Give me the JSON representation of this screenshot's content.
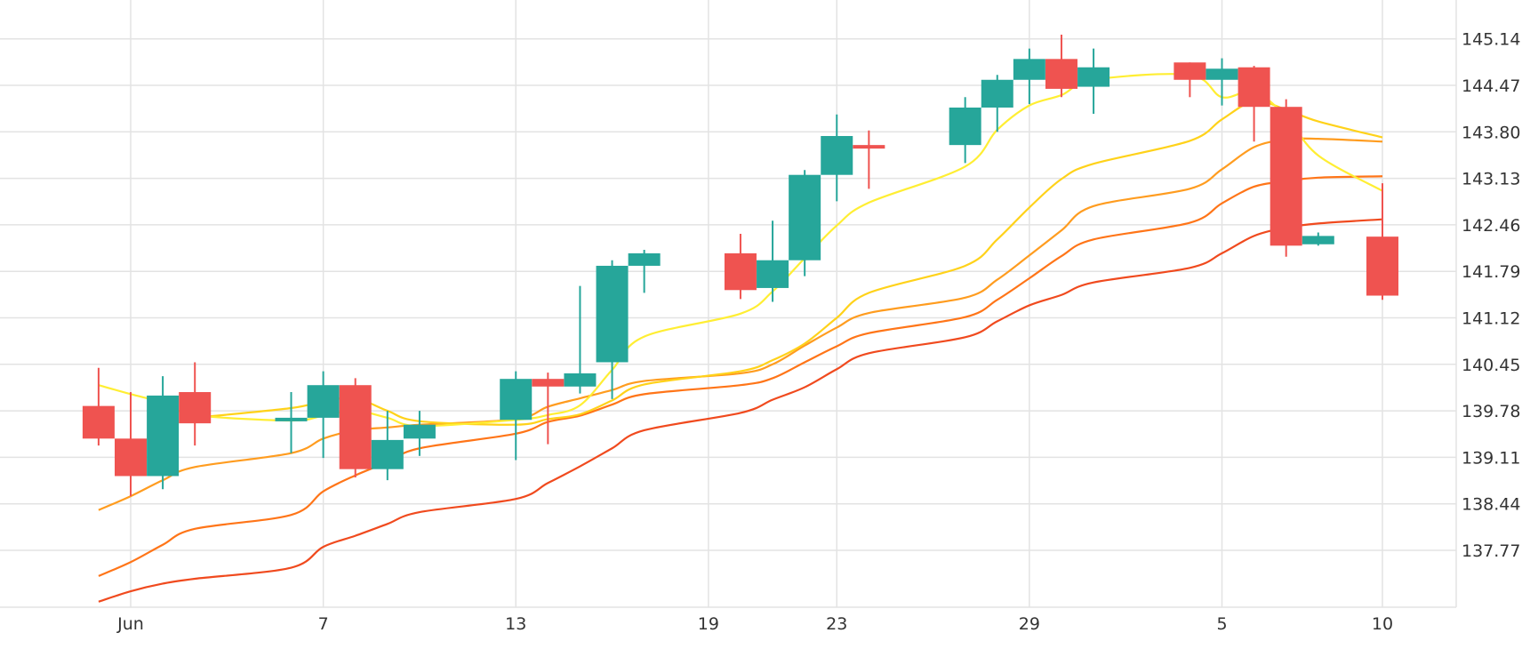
{
  "chart_data": {
    "type": "candlestick",
    "title": "",
    "xlabel": "",
    "ylabel": "",
    "grid": true,
    "x_ticks": [
      {
        "label": "Jun",
        "x": "Jun 1"
      },
      {
        "label": "7",
        "x": "Jun 7"
      },
      {
        "label": "13",
        "x": "Jun 13"
      },
      {
        "label": "19",
        "x": "Jun 19"
      },
      {
        "label": "23",
        "x": "Jun 23"
      },
      {
        "label": "29",
        "x": "Jun 29"
      },
      {
        "label": "5",
        "x": "Jul 5"
      },
      {
        "label": "10",
        "x": "Jul 10"
      }
    ],
    "y_ticks": [
      "137.77",
      "138.44",
      "139.11",
      "139.78",
      "140.45",
      "141.12",
      "141.79",
      "142.46",
      "143.13",
      "143.80",
      "144.47",
      "145.14"
    ],
    "ylim": [
      136.95,
      145.7
    ],
    "candles": [
      {
        "date": "May 31",
        "open": 139.85,
        "high": 140.4,
        "low": 139.28,
        "close": 139.38
      },
      {
        "date": "Jun 1",
        "open": 139.38,
        "high": 140.05,
        "low": 138.55,
        "close": 138.84
      },
      {
        "date": "Jun 2",
        "open": 138.84,
        "high": 140.28,
        "low": 138.65,
        "close": 140.0
      },
      {
        "date": "Jun 3",
        "open": 140.05,
        "high": 140.48,
        "low": 139.28,
        "close": 139.6
      },
      {
        "date": "Jun 6",
        "open": 139.63,
        "high": 140.05,
        "low": 139.17,
        "close": 139.68
      },
      {
        "date": "Jun 7",
        "open": 139.68,
        "high": 140.35,
        "low": 139.1,
        "close": 140.15
      },
      {
        "date": "Jun 8",
        "open": 140.15,
        "high": 140.25,
        "low": 138.82,
        "close": 138.94
      },
      {
        "date": "Jun 9",
        "open": 138.94,
        "high": 139.78,
        "low": 138.78,
        "close": 139.36
      },
      {
        "date": "Jun 10",
        "open": 139.38,
        "high": 139.78,
        "low": 139.13,
        "close": 139.58
      },
      {
        "date": "Jun 13",
        "open": 139.65,
        "high": 140.35,
        "low": 139.07,
        "close": 140.24
      },
      {
        "date": "Jun 14",
        "open": 140.24,
        "high": 140.33,
        "low": 139.3,
        "close": 140.13
      },
      {
        "date": "Jun 15",
        "open": 140.13,
        "high": 141.58,
        "low": 140.03,
        "close": 140.32
      },
      {
        "date": "Jun 16",
        "open": 140.48,
        "high": 141.95,
        "low": 139.95,
        "close": 141.87
      },
      {
        "date": "Jun 17",
        "open": 141.87,
        "high": 142.1,
        "low": 141.48,
        "close": 142.05
      },
      {
        "date": "Jun 20",
        "open": 142.05,
        "high": 142.33,
        "low": 141.39,
        "close": 141.52
      },
      {
        "date": "Jun 21",
        "open": 141.55,
        "high": 142.52,
        "low": 141.35,
        "close": 141.95
      },
      {
        "date": "Jun 22",
        "open": 141.95,
        "high": 143.25,
        "low": 141.72,
        "close": 143.18
      },
      {
        "date": "Jun 23",
        "open": 143.18,
        "high": 144.05,
        "low": 142.8,
        "close": 143.74
      },
      {
        "date": "Jun 24",
        "open": 143.61,
        "high": 143.82,
        "low": 142.98,
        "close": 143.56
      },
      {
        "date": "Jun 27",
        "open": 143.61,
        "high": 144.3,
        "low": 143.35,
        "close": 144.15
      },
      {
        "date": "Jun 28",
        "open": 144.15,
        "high": 144.62,
        "low": 143.8,
        "close": 144.55
      },
      {
        "date": "Jun 29",
        "open": 144.55,
        "high": 145.0,
        "low": 144.2,
        "close": 144.85
      },
      {
        "date": "Jun 30",
        "open": 144.85,
        "high": 145.2,
        "low": 144.3,
        "close": 144.42
      },
      {
        "date": "Jul 1",
        "open": 144.45,
        "high": 145.0,
        "low": 144.06,
        "close": 144.73
      },
      {
        "date": "Jul 4",
        "open": 144.8,
        "high": 144.8,
        "low": 144.3,
        "close": 144.55
      },
      {
        "date": "Jul 5",
        "open": 144.55,
        "high": 144.86,
        "low": 144.18,
        "close": 144.71
      },
      {
        "date": "Jul 6",
        "open": 144.73,
        "high": 144.75,
        "low": 143.66,
        "close": 144.16
      },
      {
        "date": "Jul 7",
        "open": 144.16,
        "high": 144.27,
        "low": 142.0,
        "close": 142.16
      },
      {
        "date": "Jul 8",
        "open": 142.18,
        "high": 142.35,
        "low": 142.16,
        "close": 142.3
      },
      {
        "date": "Jul 10",
        "open": 142.29,
        "high": 143.06,
        "low": 141.38,
        "close": 141.44
      }
    ],
    "series": [
      {
        "color": "#ffee33",
        "values": [
          140.15,
          140.02,
          139.9,
          139.72,
          139.64,
          139.71,
          139.78,
          139.68,
          139.56,
          139.65,
          139.72,
          139.86,
          140.37,
          140.85,
          141.18,
          141.5,
          141.98,
          142.45,
          142.78,
          143.3,
          143.83,
          144.18,
          144.33,
          144.55,
          144.62,
          144.3,
          144.38,
          144.02,
          143.46,
          142.95
        ]
      },
      {
        "color": "#ffd21a",
        "values": [
          null,
          null,
          null,
          139.68,
          139.82,
          139.92,
          139.96,
          139.78,
          139.63,
          139.58,
          139.66,
          139.73,
          139.93,
          140.16,
          140.35,
          140.51,
          140.75,
          141.12,
          141.48,
          141.87,
          142.25,
          142.71,
          143.12,
          143.34,
          143.67,
          143.98,
          144.24,
          144.12,
          143.95,
          143.72
        ]
      },
      {
        "color": "#ff9c1f",
        "values": [
          138.35,
          138.55,
          138.78,
          138.97,
          139.17,
          139.38,
          139.5,
          139.54,
          139.58,
          139.66,
          139.84,
          139.96,
          140.08,
          140.21,
          140.32,
          140.45,
          140.72,
          140.98,
          141.19,
          141.41,
          141.67,
          142.02,
          142.38,
          142.73,
          142.98,
          143.26,
          143.58,
          143.69,
          143.7,
          143.66
        ]
      },
      {
        "color": "#ff7518",
        "values": [
          137.4,
          137.6,
          137.85,
          138.08,
          138.28,
          138.62,
          138.85,
          139.04,
          139.24,
          139.45,
          139.62,
          139.71,
          139.87,
          140.02,
          140.15,
          140.25,
          140.48,
          140.71,
          140.9,
          141.13,
          141.38,
          141.69,
          142.01,
          142.25,
          142.49,
          142.77,
          143.01,
          143.09,
          143.14,
          143.16
        ]
      },
      {
        "color": "#f04a1e",
        "values": [
          137.03,
          137.18,
          137.29,
          137.36,
          137.52,
          137.82,
          137.98,
          138.15,
          138.32,
          138.51,
          138.74,
          138.98,
          139.24,
          139.5,
          139.75,
          139.94,
          140.12,
          140.38,
          140.61,
          140.84,
          141.07,
          141.3,
          141.45,
          141.63,
          141.84,
          142.05,
          142.3,
          142.42,
          142.48,
          142.54
        ]
      }
    ],
    "colors": {
      "up": "#26a69a",
      "down": "#ef5350",
      "grid": "#e3e3e3"
    }
  }
}
